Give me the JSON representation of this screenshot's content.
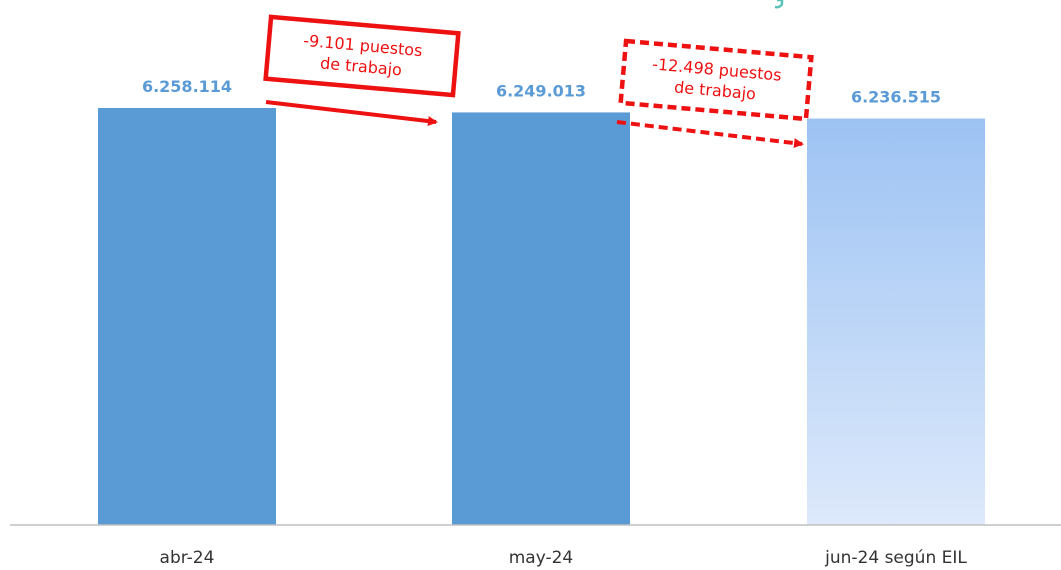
{
  "chart_data": {
    "type": "bar",
    "title": "",
    "xlabel": "",
    "ylabel": "",
    "categories": [
      "abr-24",
      "may-24",
      "jun-24 según EIL"
    ],
    "values": [
      6258114,
      6249013,
      6236515
    ],
    "value_labels": [
      "6.258.114",
      "6.249.013",
      "6.236.515"
    ],
    "projected": [
      false,
      false,
      true
    ],
    "grid": false,
    "annotations": [
      {
        "text_lines": [
          "-9.101 puestos",
          "de trabajo"
        ],
        "from": "abr-24",
        "to": "may-24",
        "style": "solid"
      },
      {
        "text_lines": [
          "-12.498 puestos",
          "de trabajo"
        ],
        "from": "may-24",
        "to": "jun-24 según EIL",
        "style": "dashed"
      }
    ]
  },
  "colors": {
    "bar": "#5b9bd5",
    "bar_projected_top": "#9dc3f3",
    "bar_projected_bottom": "#dde9fb",
    "value_label": "#5b9bd5",
    "annotation": "#ee1111",
    "axis": "#bfbfbf",
    "teal_fragment": "#58c2b8"
  }
}
